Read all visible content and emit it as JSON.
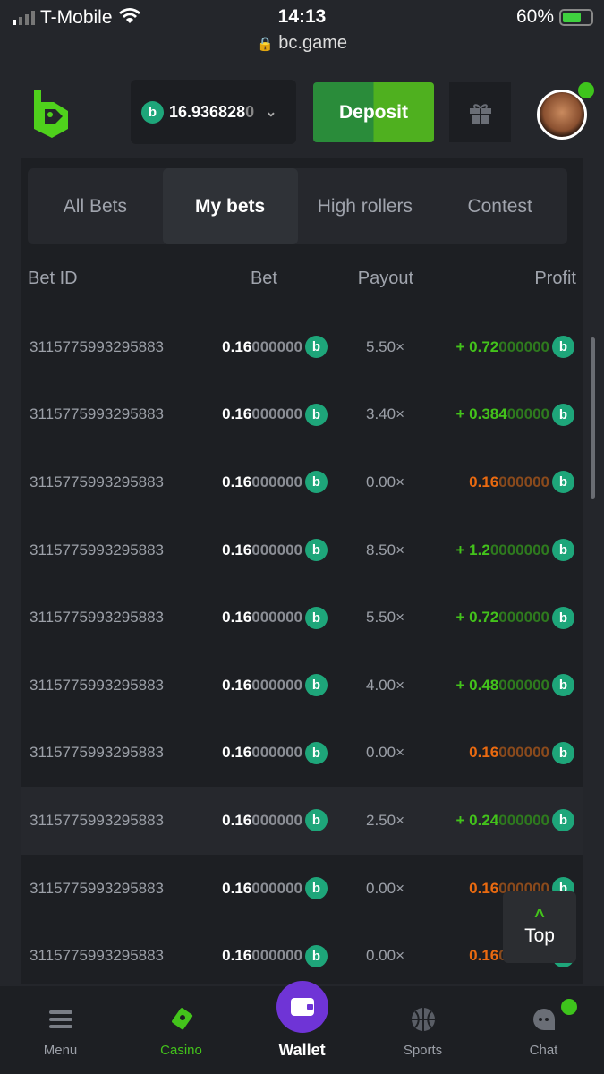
{
  "status_bar": {
    "carrier": "T-Mobile",
    "time": "14:13",
    "battery": "60%",
    "battery_level": 0.6
  },
  "url": "bc.game",
  "header": {
    "balance_main": "16.936828",
    "balance_dim": "0",
    "deposit_label": "Deposit"
  },
  "tabs": [
    {
      "label": "All Bets"
    },
    {
      "label": "My bets"
    },
    {
      "label": "High rollers"
    },
    {
      "label": "Contest"
    }
  ],
  "active_tab": "My bets",
  "columns": {
    "bet_id": "Bet ID",
    "bet": "Bet",
    "payout": "Payout",
    "profit": "Profit"
  },
  "rows": [
    {
      "id": "3115775993295883",
      "bet_main": "0.16",
      "bet_dim": "000000",
      "payout": "5.50×",
      "profit_main": "+ 0.72",
      "profit_dim": "000000",
      "win": true
    },
    {
      "id": "3115775993295883",
      "bet_main": "0.16",
      "bet_dim": "000000",
      "payout": "3.40×",
      "profit_main": "+ 0.384",
      "profit_dim": "00000",
      "win": true
    },
    {
      "id": "3115775993295883",
      "bet_main": "0.16",
      "bet_dim": "000000",
      "payout": "0.00×",
      "profit_main": "0.16",
      "profit_dim": "000000",
      "win": false
    },
    {
      "id": "3115775993295883",
      "bet_main": "0.16",
      "bet_dim": "000000",
      "payout": "8.50×",
      "profit_main": "+ 1.2",
      "profit_dim": "0000000",
      "win": true
    },
    {
      "id": "3115775993295883",
      "bet_main": "0.16",
      "bet_dim": "000000",
      "payout": "5.50×",
      "profit_main": "+ 0.72",
      "profit_dim": "000000",
      "win": true
    },
    {
      "id": "3115775993295883",
      "bet_main": "0.16",
      "bet_dim": "000000",
      "payout": "4.00×",
      "profit_main": "+ 0.48",
      "profit_dim": "000000",
      "win": true
    },
    {
      "id": "3115775993295883",
      "bet_main": "0.16",
      "bet_dim": "000000",
      "payout": "0.00×",
      "profit_main": "0.16",
      "profit_dim": "000000",
      "win": false
    },
    {
      "id": "3115775993295883",
      "bet_main": "0.16",
      "bet_dim": "000000",
      "payout": "2.50×",
      "profit_main": "+ 0.24",
      "profit_dim": "000000",
      "win": true
    },
    {
      "id": "3115775993295883",
      "bet_main": "0.16",
      "bet_dim": "000000",
      "payout": "0.00×",
      "profit_main": "0.16",
      "profit_dim": "000000",
      "win": false
    },
    {
      "id": "3115775993295883",
      "bet_main": "0.16",
      "bet_dim": "000000",
      "payout": "0.00×",
      "profit_main": "0.16",
      "profit_dim": "000000",
      "win": false
    }
  ],
  "top_button": "Top",
  "nav": [
    {
      "label": "Menu",
      "icon": "menu-icon"
    },
    {
      "label": "Casino",
      "icon": "casino-cards-icon"
    },
    {
      "label": "Wallet",
      "icon": "wallet-icon"
    },
    {
      "label": "Sports",
      "icon": "basketball-icon"
    },
    {
      "label": "Chat",
      "icon": "chat-icon"
    }
  ],
  "colors": {
    "accent": "#43c31b",
    "loss": "#ea6a10",
    "coin": "#1ea67a",
    "wallet": "#6f34d6"
  }
}
